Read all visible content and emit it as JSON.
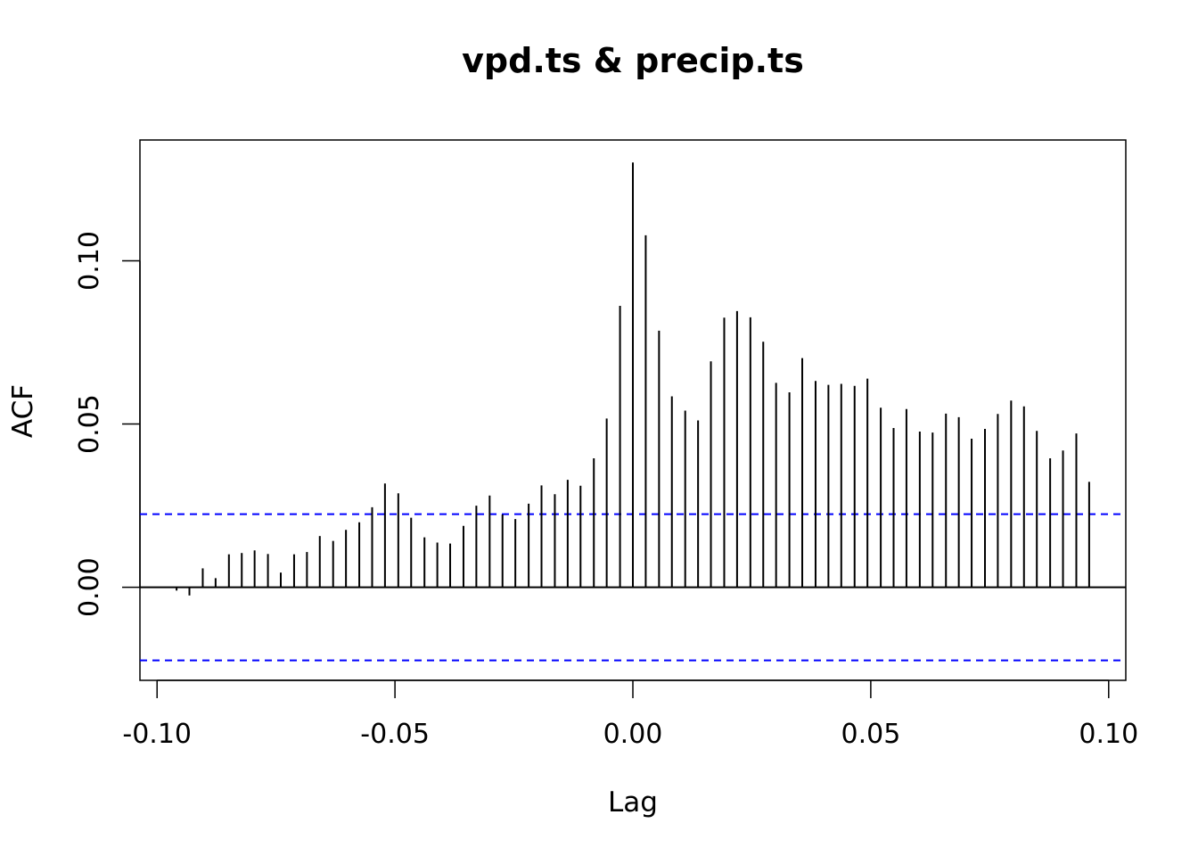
{
  "chart_data": {
    "type": "bar",
    "title": "vpd.ts & precip.ts",
    "xlabel": "Lag",
    "ylabel": "ACF",
    "xlim": [
      -0.1036,
      0.1036
    ],
    "ylim": [
      -0.0285,
      0.137
    ],
    "x_ticks": [
      -0.1,
      -0.05,
      0.0,
      0.05,
      0.1
    ],
    "x_tick_labels": [
      "-0.10",
      "-0.05",
      "0.00",
      "0.05",
      "0.10"
    ],
    "y_ticks": [
      0.0,
      0.05,
      0.1
    ],
    "y_tick_labels": [
      "0.00",
      "0.05",
      "0.10"
    ],
    "confidence_bound": 0.0224,
    "colors": {
      "bars": "#000000",
      "confidence_lines": "#0000ff",
      "zero_line": "#000000"
    },
    "lags": [
      -0.0959,
      -0.0932,
      -0.0904,
      -0.0877,
      -0.0849,
      -0.0822,
      -0.0795,
      -0.0767,
      -0.074,
      -0.0712,
      -0.0685,
      -0.0658,
      -0.063,
      -0.0603,
      -0.0575,
      -0.0548,
      -0.0521,
      -0.0493,
      -0.0466,
      -0.0438,
      -0.0411,
      -0.0384,
      -0.0356,
      -0.0329,
      -0.0301,
      -0.0274,
      -0.0247,
      -0.0219,
      -0.0192,
      -0.0164,
      -0.0137,
      -0.011,
      -0.0082,
      -0.0055,
      -0.0027,
      0.0,
      0.0027,
      0.0055,
      0.0082,
      0.011,
      0.0137,
      0.0164,
      0.0192,
      0.0219,
      0.0247,
      0.0274,
      0.0301,
      0.0329,
      0.0356,
      0.0384,
      0.0411,
      0.0438,
      0.0466,
      0.0493,
      0.0521,
      0.0548,
      0.0575,
      0.0603,
      0.063,
      0.0658,
      0.0685,
      0.0712,
      0.074,
      0.0767,
      0.0795,
      0.0822,
      0.0849,
      0.0877,
      0.0904,
      0.0932,
      0.0959
    ],
    "values": [
      -0.001,
      -0.0025,
      0.0058,
      0.0028,
      0.0101,
      0.0105,
      0.0113,
      0.0102,
      0.0045,
      0.0101,
      0.0108,
      0.0157,
      0.0142,
      0.0176,
      0.0199,
      0.0245,
      0.0318,
      0.0288,
      0.0213,
      0.0153,
      0.0137,
      0.0134,
      0.0188,
      0.025,
      0.0281,
      0.0223,
      0.0209,
      0.0256,
      0.0312,
      0.0285,
      0.0329,
      0.0311,
      0.0395,
      0.0517,
      0.0862,
      0.1301,
      0.1078,
      0.0786,
      0.0585,
      0.0541,
      0.0511,
      0.0692,
      0.0826,
      0.0846,
      0.0827,
      0.0752,
      0.0626,
      0.0597,
      0.0702,
      0.0632,
      0.062,
      0.0623,
      0.0617,
      0.0639,
      0.055,
      0.0488,
      0.0546,
      0.0477,
      0.0474,
      0.0532,
      0.0521,
      0.0455,
      0.0485,
      0.0531,
      0.0572,
      0.0554,
      0.0479,
      0.0395,
      0.0419,
      0.0471,
      0.0323
    ]
  }
}
